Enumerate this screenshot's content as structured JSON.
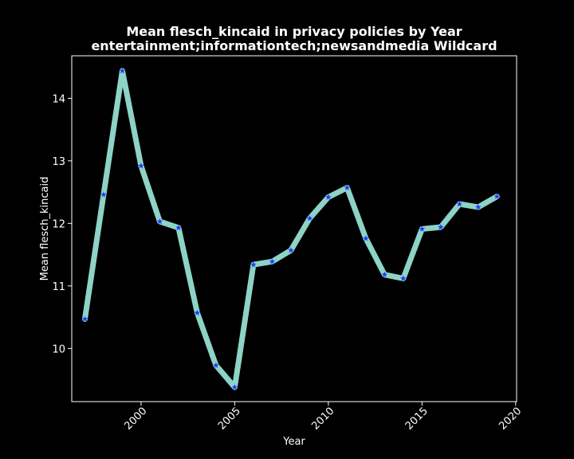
{
  "chart_data": {
    "type": "line",
    "title_line1": "Mean flesch_kincaid in privacy policies by Year",
    "title_line2": "entertainment;informationtech;newsandmedia Wildcard",
    "xlabel": "Year",
    "ylabel": "Mean flesch_kincaid",
    "xlim": [
      1996.3,
      2020.05
    ],
    "ylim": [
      9.15,
      14.68
    ],
    "xticks": [
      2000,
      2005,
      2010,
      2015,
      2020
    ],
    "yticks": [
      10,
      11,
      12,
      13,
      14
    ],
    "grid": false,
    "colors": {
      "background": "#000000",
      "line": "#8dd3c7",
      "marker": "#1f3cff",
      "axes": "#ffffff"
    },
    "series": [
      {
        "x": [
          1997,
          1998,
          1999,
          2000,
          2001,
          2002,
          2003,
          2004,
          2005,
          2006,
          2007,
          2008,
          2009,
          2010,
          2011,
          2012,
          2013,
          2014,
          2015,
          2016,
          2017,
          2018,
          2019
        ],
        "values": [
          10.47,
          12.46,
          14.44,
          12.92,
          12.03,
          11.93,
          10.57,
          9.73,
          9.38,
          11.34,
          11.39,
          11.57,
          12.08,
          12.42,
          12.57,
          11.76,
          11.18,
          11.12,
          11.91,
          11.94,
          12.31,
          12.26,
          12.43
        ]
      }
    ]
  }
}
